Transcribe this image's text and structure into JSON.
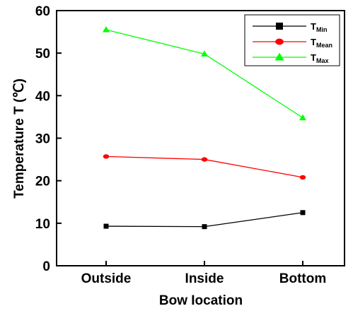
{
  "chart_data": {
    "type": "line",
    "title": "",
    "xlabel": "Bow Iocation",
    "ylabel": "Temperature T (℃)",
    "categories": [
      "Outside",
      "Inside",
      "Bottom"
    ],
    "ylim": [
      0,
      60
    ],
    "yticks": [
      "0",
      "10",
      "20",
      "30",
      "40",
      "50",
      "60"
    ],
    "grid": false,
    "legend_position": "top-right",
    "series": [
      {
        "name": "T",
        "sub": "Min",
        "values": [
          9.3,
          9.2,
          12.5
        ],
        "color": "#000000",
        "marker": "square"
      },
      {
        "name": "T",
        "sub": "Mean",
        "values": [
          25.7,
          25.0,
          20.8
        ],
        "color": "#ff0000",
        "marker": "circle"
      },
      {
        "name": "T",
        "sub": "Max",
        "values": [
          55.5,
          49.8,
          34.8
        ],
        "color": "#00ff00",
        "marker": "triangle"
      }
    ]
  }
}
